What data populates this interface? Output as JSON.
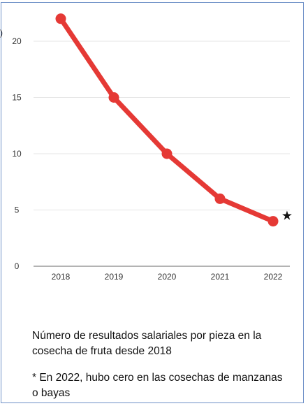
{
  "chart_data": {
    "type": "line",
    "title": "",
    "xlabel": "",
    "ylabel": "",
    "categories": [
      "2018",
      "2019",
      "2020",
      "2021",
      "2022"
    ],
    "series": [
      {
        "values": [
          22,
          15,
          10,
          6,
          4
        ],
        "color": "#e53935"
      }
    ],
    "ylim": [
      0,
      22
    ],
    "yticks": [
      0,
      5,
      10,
      15,
      20
    ],
    "grid": true,
    "grid_color": "#e6e6e6",
    "axis_color": "#9a9a9a",
    "annotation_marker": "★"
  },
  "stub_text": ")",
  "captions": {
    "description": "Número de resultados salariales por pieza en la cosecha de fruta desde 2018",
    "footnote": "* En 2022, hubo cero en las cosechas de manzanas o bayas"
  }
}
